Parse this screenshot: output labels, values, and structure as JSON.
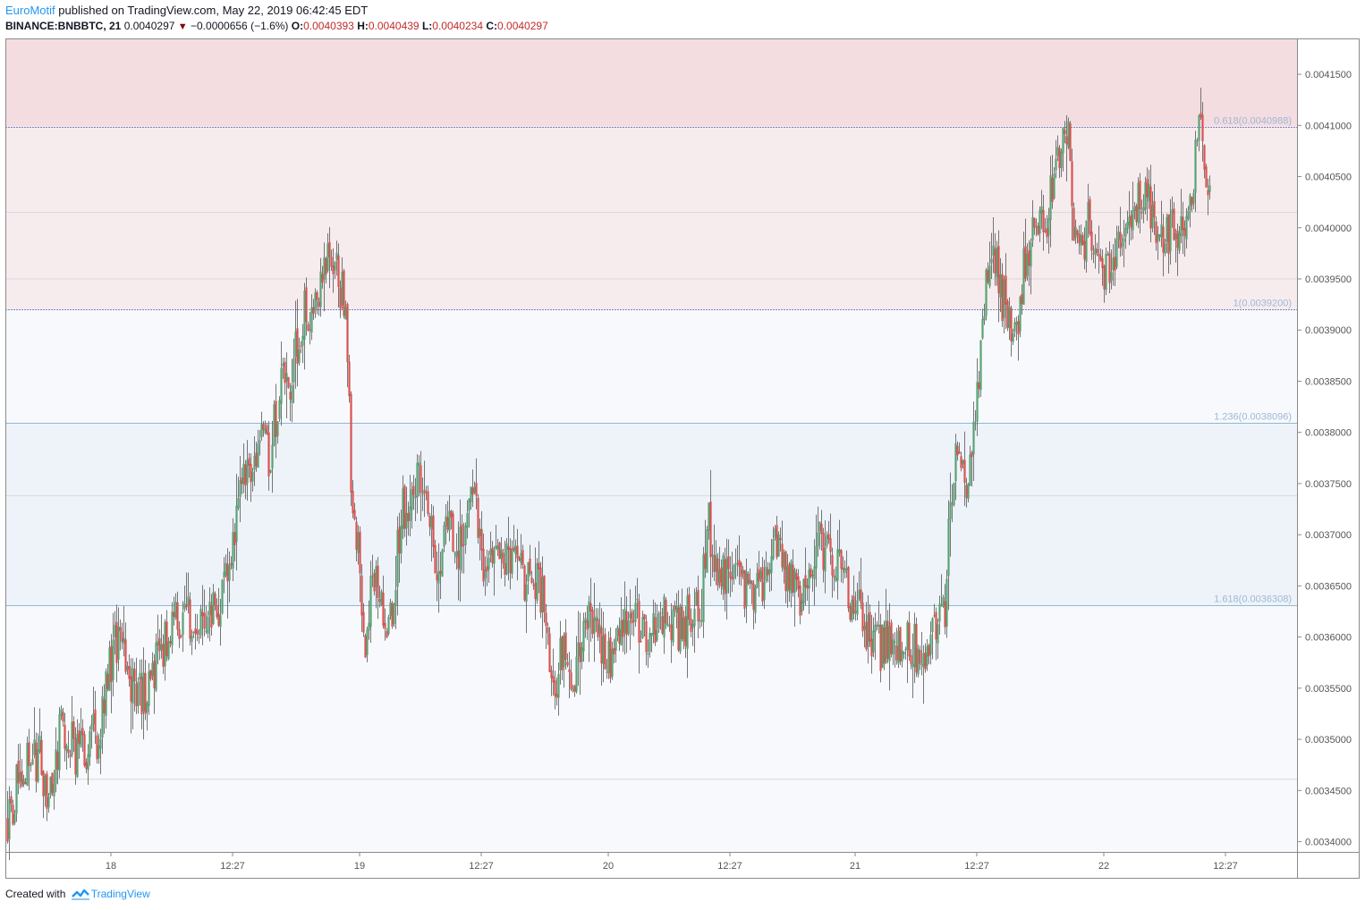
{
  "header": {
    "author": "EuroMotif",
    "published_text": "published on TradingView.com, May 22, 2019 06:42:45 EDT",
    "symbol": "BINANCE:BNBBTC, 21",
    "last": "0.0040297",
    "change": "−0.0000656 (−1.6%)",
    "o_label": "O:",
    "o_value": "0.0040393",
    "h_label": "H:",
    "h_value": "0.0040439",
    "l_label": "L:",
    "l_value": "0.0040234",
    "c_label": "C:",
    "c_value": "0.0040297"
  },
  "footer": {
    "created_with": "Created with",
    "brand": "TradingView"
  },
  "colors": {
    "up": "#5aa274",
    "down": "#d9534f",
    "fib_line": "#8fb9d6",
    "zone_red": "#f3dde0",
    "zone_pink": "#f6ecee",
    "zone_blue": "#eef3f9",
    "zone_light": "#f7f9fc",
    "fib_label": "#9fb8d4",
    "axis_text": "#555555"
  },
  "chart_data": {
    "type": "candlestick",
    "symbol": "BINANCE:BNBBTC",
    "timeframe": "21",
    "ylim": [
      0.00339,
      0.004185
    ],
    "y_ticks": [
      "0.0041500",
      "0.0041000",
      "0.0040500",
      "0.0040000",
      "0.0039500",
      "0.0039000",
      "0.0038500",
      "0.0038000",
      "0.0037500",
      "0.0037000",
      "0.0036500",
      "0.0036000",
      "0.0035500",
      "0.0035000",
      "0.0034500",
      "0.0034000"
    ],
    "x_ticks": [
      "18",
      "12:27",
      "19",
      "12:27",
      "20",
      "12:27",
      "21",
      "12:27",
      "22",
      "12:27"
    ],
    "fib_levels": [
      {
        "label": "0.618(0.0040988)",
        "value": 0.0040988
      },
      {
        "label": "1(0.0039200)",
        "value": 0.00392
      },
      {
        "label": "1.236(0.0038096)",
        "value": 0.0038096
      },
      {
        "label": "1.618(0.0036308)",
        "value": 0.0036308
      }
    ],
    "price_path": [
      [
        0,
        0.003425
      ],
      [
        10,
        0.00348
      ],
      [
        18,
        0.00348
      ],
      [
        22,
        0.003445
      ],
      [
        30,
        0.00351
      ],
      [
        40,
        0.003485
      ],
      [
        50,
        0.003505
      ],
      [
        60,
        0.003595
      ],
      [
        70,
        0.003555
      ],
      [
        78,
        0.003545
      ],
      [
        88,
        0.0036
      ],
      [
        95,
        0.003615
      ],
      [
        100,
        0.00363
      ],
      [
        105,
        0.003598
      ],
      [
        110,
        0.003622
      ],
      [
        118,
        0.003632
      ],
      [
        125,
        0.003668
      ],
      [
        132,
        0.003755
      ],
      [
        140,
        0.003795
      ],
      [
        146,
        0.003778
      ],
      [
        153,
        0.003845
      ],
      [
        158,
        0.003845
      ],
      [
        165,
        0.003915
      ],
      [
        170,
        0.003925
      ],
      [
        177,
        0.00395
      ],
      [
        182,
        0.003975
      ],
      [
        187,
        0.003935
      ],
      [
        190,
        0.00388
      ],
      [
        192,
        0.003755
      ],
      [
        196,
        0.00368
      ],
      [
        200,
        0.003605
      ],
      [
        206,
        0.003668
      ],
      [
        212,
        0.003608
      ],
      [
        216,
        0.003638
      ],
      [
        220,
        0.003725
      ],
      [
        226,
        0.00373
      ],
      [
        230,
        0.003775
      ],
      [
        235,
        0.003725
      ],
      [
        240,
        0.003675
      ],
      [
        246,
        0.003705
      ],
      [
        252,
        0.003678
      ],
      [
        256,
        0.003705
      ],
      [
        260,
        0.003735
      ],
      [
        266,
        0.00367
      ],
      [
        272,
        0.00369
      ],
      [
        278,
        0.003678
      ],
      [
        285,
        0.003662
      ],
      [
        290,
        0.00365
      ],
      [
        295,
        0.00366
      ],
      [
        300,
        0.00363
      ],
      [
        305,
        0.00354
      ],
      [
        310,
        0.003588
      ],
      [
        315,
        0.003555
      ],
      [
        322,
        0.003605
      ],
      [
        328,
        0.003625
      ],
      [
        332,
        0.003598
      ],
      [
        338,
        0.003582
      ],
      [
        345,
        0.003612
      ],
      [
        350,
        0.00362
      ],
      [
        356,
        0.003605
      ],
      [
        362,
        0.003618
      ],
      [
        368,
        0.003625
      ],
      [
        372,
        0.003615
      ],
      [
        377,
        0.00361
      ],
      [
        382,
        0.003622
      ],
      [
        388,
        0.003638
      ],
      [
        392,
        0.003708
      ],
      [
        398,
        0.003665
      ],
      [
        405,
        0.003652
      ],
      [
        412,
        0.003642
      ],
      [
        418,
        0.003638
      ],
      [
        424,
        0.003665
      ],
      [
        430,
        0.003698
      ],
      [
        436,
        0.003662
      ],
      [
        442,
        0.003638
      ],
      [
        448,
        0.003652
      ],
      [
        454,
        0.003695
      ],
      [
        460,
        0.003668
      ],
      [
        466,
        0.00366
      ],
      [
        470,
        0.00364
      ],
      [
        474,
        0.003638
      ],
      [
        478,
        0.003612
      ],
      [
        482,
        0.003605
      ],
      [
        488,
        0.003585
      ],
      [
        492,
        0.003598
      ],
      [
        497,
        0.003595
      ],
      [
        502,
        0.003605
      ],
      [
        508,
        0.003588
      ],
      [
        512,
        0.003578
      ],
      [
        517,
        0.003598
      ],
      [
        521,
        0.003608
      ],
      [
        524,
        0.00363
      ],
      [
        526,
        0.00372
      ],
      [
        530,
        0.00378
      ],
      [
        534,
        0.00375
      ],
      [
        538,
        0.003755
      ],
      [
        542,
        0.003825
      ],
      [
        545,
        0.003895
      ],
      [
        548,
        0.003955
      ],
      [
        551,
        0.003992
      ],
      [
        554,
        0.00394
      ],
      [
        558,
        0.003925
      ],
      [
        562,
        0.003885
      ],
      [
        565,
        0.003905
      ],
      [
        568,
        0.003955
      ],
      [
        572,
        0.00399
      ],
      [
        576,
        0.004015
      ],
      [
        580,
        0.003995
      ],
      [
        585,
        0.00406
      ],
      [
        590,
        0.00409
      ],
      [
        593,
        0.004098
      ],
      [
        596,
        0.003998
      ],
      [
        600,
        0.003968
      ],
      [
        604,
        0.004008
      ],
      [
        608,
        0.003985
      ],
      [
        613,
        0.00396
      ],
      [
        617,
        0.003945
      ],
      [
        621,
        0.003975
      ],
      [
        625,
        0.004005
      ],
      [
        630,
        0.004028
      ],
      [
        636,
        0.004025
      ],
      [
        642,
        0.004005
      ],
      [
        646,
        0.003992
      ],
      [
        650,
        0.00399
      ],
      [
        654,
        0.004005
      ],
      [
        658,
        0.004015
      ],
      [
        662,
        0.004045
      ],
      [
        666,
        0.004088
      ],
      [
        668,
        0.004085
      ],
      [
        670,
        0.00405
      ],
      [
        672,
        0.004035
      ]
    ],
    "path_note_units": "bar index vs price"
  }
}
